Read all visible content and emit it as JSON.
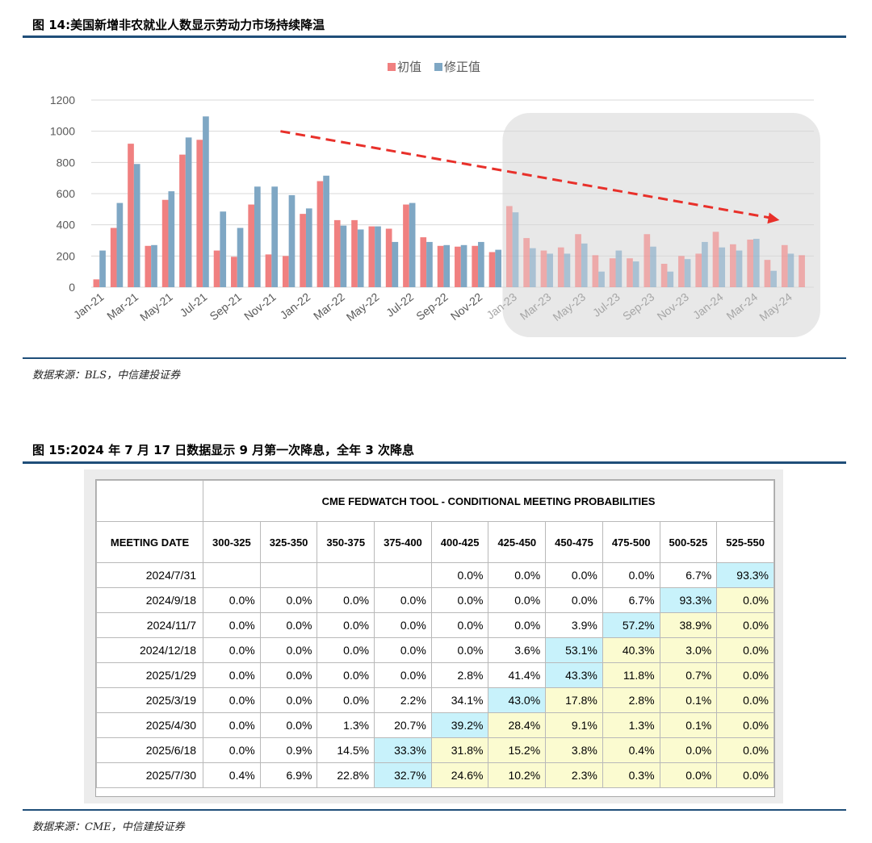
{
  "figure14": {
    "title": "图 14:美国新增非农就业人数显示劳动力市场持续降温",
    "source": "数据来源：BLS，中信建投证券"
  },
  "figure15": {
    "title": "图 15:2024 年 7 月 17 日数据显示 9 月第一次降息，全年 3 次降息",
    "source": "数据来源：CME，中信建投证券"
  },
  "chart_data": {
    "type": "bar",
    "ylim": [
      0,
      1200
    ],
    "yticks": [
      0,
      200,
      400,
      600,
      800,
      1000,
      1200
    ],
    "legend_position": "top-center",
    "grid": true,
    "categories": [
      "Jan-21",
      "Feb-21",
      "Mar-21",
      "Apr-21",
      "May-21",
      "Jun-21",
      "Jul-21",
      "Aug-21",
      "Sep-21",
      "Oct-21",
      "Nov-21",
      "Dec-21",
      "Jan-22",
      "Feb-22",
      "Mar-22",
      "Apr-22",
      "May-22",
      "Jun-22",
      "Jul-22",
      "Aug-22",
      "Sep-22",
      "Oct-22",
      "Nov-22",
      "Dec-22",
      "Jan-23",
      "Feb-23",
      "Mar-23",
      "Apr-23",
      "May-23",
      "Jun-23",
      "Jul-23",
      "Aug-23",
      "Sep-23",
      "Oct-23",
      "Nov-23",
      "Dec-23",
      "Jan-24",
      "Feb-24",
      "Mar-24",
      "Apr-24",
      "May-24",
      "Jun-24"
    ],
    "tick_labels": [
      "Jan-21",
      "Mar-21",
      "May-21",
      "Jul-21",
      "Sep-21",
      "Nov-21",
      "Jan-22",
      "Mar-22",
      "May-22",
      "Jul-22",
      "Sep-22",
      "Nov-22",
      "Jan-23",
      "Mar-23",
      "May-23",
      "Jul-23",
      "Sep-23",
      "Nov-23",
      "Jan-24",
      "Mar-24",
      "May-24"
    ],
    "series": [
      {
        "name": "初值",
        "color": "#f08080",
        "values": [
          50,
          380,
          920,
          265,
          560,
          850,
          945,
          235,
          195,
          530,
          210,
          200,
          470,
          680,
          430,
          430,
          390,
          375,
          530,
          320,
          265,
          260,
          265,
          225,
          520,
          315,
          235,
          255,
          340,
          205,
          185,
          185,
          340,
          150,
          200,
          215,
          355,
          275,
          305,
          175,
          270,
          205
        ]
      },
      {
        "name": "修正值",
        "color": "#7fa7c4",
        "values": [
          235,
          540,
          790,
          270,
          615,
          960,
          1095,
          485,
          380,
          645,
          645,
          590,
          505,
          715,
          395,
          370,
          390,
          290,
          540,
          290,
          270,
          270,
          290,
          240,
          480,
          250,
          215,
          215,
          280,
          100,
          235,
          165,
          260,
          100,
          180,
          290,
          255,
          235,
          310,
          105,
          215,
          null
        ]
      }
    ],
    "highlight_start_index": 24,
    "trend_arrow": {
      "from_index": 11,
      "from_value": 1000,
      "to_index": 40,
      "to_value": 430
    },
    "shaded_region_colors": {
      "region": "#e8e8e8"
    }
  },
  "fedwatch": {
    "title": "CME FEDWATCH TOOL - CONDITIONAL MEETING PROBABILITIES",
    "date_header": "MEETING DATE",
    "ranges": [
      "300-325",
      "325-350",
      "350-375",
      "375-400",
      "400-425",
      "425-450",
      "450-475",
      "475-500",
      "500-525",
      "525-550"
    ],
    "highlight_color": "#c8f2fb",
    "fill_color": "#fbfbd0",
    "rows": [
      {
        "date": "2024/7/31",
        "values": [
          "",
          "",
          "",
          "",
          "0.0%",
          "0.0%",
          "0.0%",
          "0.0%",
          "6.7%",
          "93.3%"
        ],
        "hl": 9
      },
      {
        "date": "2024/9/18",
        "values": [
          "0.0%",
          "0.0%",
          "0.0%",
          "0.0%",
          "0.0%",
          "0.0%",
          "0.0%",
          "6.7%",
          "93.3%",
          "0.0%"
        ],
        "hl": 8
      },
      {
        "date": "2024/11/7",
        "values": [
          "0.0%",
          "0.0%",
          "0.0%",
          "0.0%",
          "0.0%",
          "0.0%",
          "3.9%",
          "57.2%",
          "38.9%",
          "0.0%"
        ],
        "hl": 7
      },
      {
        "date": "2024/12/18",
        "values": [
          "0.0%",
          "0.0%",
          "0.0%",
          "0.0%",
          "0.0%",
          "3.6%",
          "53.1%",
          "40.3%",
          "3.0%",
          "0.0%"
        ],
        "hl": 6
      },
      {
        "date": "2025/1/29",
        "values": [
          "0.0%",
          "0.0%",
          "0.0%",
          "0.0%",
          "2.8%",
          "41.4%",
          "43.3%",
          "11.8%",
          "0.7%",
          "0.0%"
        ],
        "hl": 6
      },
      {
        "date": "2025/3/19",
        "values": [
          "0.0%",
          "0.0%",
          "0.0%",
          "2.2%",
          "34.1%",
          "43.0%",
          "17.8%",
          "2.8%",
          "0.1%",
          "0.0%"
        ],
        "hl": 5
      },
      {
        "date": "2025/4/30",
        "values": [
          "0.0%",
          "0.0%",
          "1.3%",
          "20.7%",
          "39.2%",
          "28.4%",
          "9.1%",
          "1.3%",
          "0.1%",
          "0.0%"
        ],
        "hl": 4
      },
      {
        "date": "2025/6/18",
        "values": [
          "0.0%",
          "0.9%",
          "14.5%",
          "33.3%",
          "31.8%",
          "15.2%",
          "3.8%",
          "0.4%",
          "0.0%",
          "0.0%"
        ],
        "hl": 3
      },
      {
        "date": "2025/7/30",
        "values": [
          "0.4%",
          "6.9%",
          "22.8%",
          "32.7%",
          "24.6%",
          "10.2%",
          "2.3%",
          "0.3%",
          "0.0%",
          "0.0%"
        ],
        "hl": 3
      }
    ]
  }
}
